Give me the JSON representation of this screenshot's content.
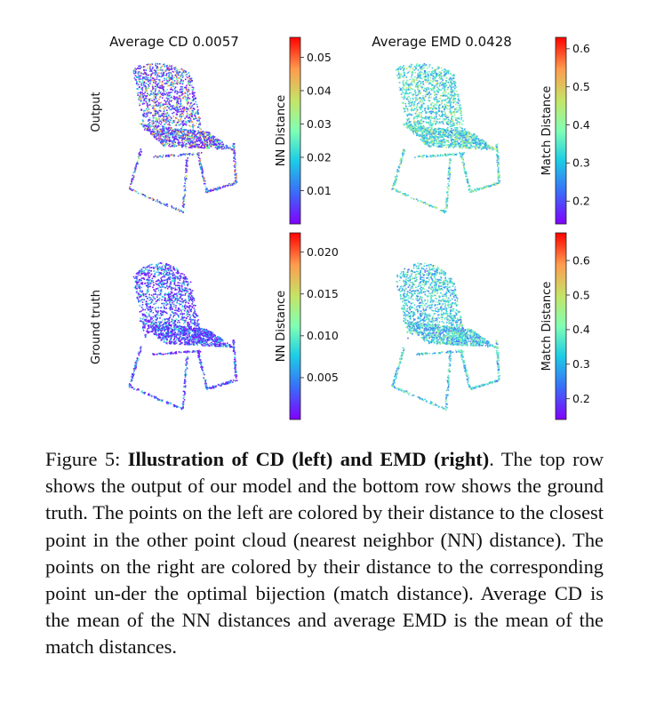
{
  "panels": [
    {
      "id": "cd-output",
      "title": "Average CD 0.0057",
      "row_label": "Output",
      "colorbar": {
        "label": "NN Distance",
        "ticks": [
          "0.05",
          "0.04",
          "0.03",
          "0.02",
          "0.01"
        ],
        "tick_values": [
          0.05,
          0.04,
          0.03,
          0.02,
          0.01
        ],
        "range": [
          0.0,
          0.056
        ]
      }
    },
    {
      "id": "emd-output",
      "title": "Average EMD 0.0428",
      "colorbar": {
        "label": "Match Distance",
        "ticks": [
          "0.6",
          "0.5",
          "0.4",
          "0.3",
          "0.2"
        ],
        "tick_values": [
          0.6,
          0.5,
          0.4,
          0.3,
          0.2
        ],
        "range": [
          0.14,
          0.63
        ]
      }
    },
    {
      "id": "cd-gt",
      "row_label": "Ground truth",
      "colorbar": {
        "label": "NN Distance",
        "ticks": [
          "0.020",
          "0.015",
          "0.010",
          "0.005"
        ],
        "tick_values": [
          0.02,
          0.015,
          0.01,
          0.005
        ],
        "range": [
          0.0,
          0.0223
        ]
      }
    },
    {
      "id": "emd-gt",
      "colorbar": {
        "label": "Match Distance",
        "ticks": [
          "0.6",
          "0.5",
          "0.4",
          "0.3",
          "0.2"
        ],
        "tick_values": [
          0.6,
          0.5,
          0.4,
          0.3,
          0.2
        ],
        "range": [
          0.14,
          0.68
        ]
      }
    }
  ],
  "colormap": "rainbow",
  "caption": {
    "prefix": "Figure 5: ",
    "bold": "Illustration of CD (left) and EMD (right)",
    "rest": ". The top row shows the output of our model and the bottom row shows the ground truth.  The points on the left are colored by their distance to the closest point in the other point cloud (nearest neighbor (NN) distance).  The points on the right are colored by their distance to the corresponding point un-der the optimal bijection (match distance).  Average CD is the mean of the NN distances and average EMD is the mean of the match distances."
  }
}
